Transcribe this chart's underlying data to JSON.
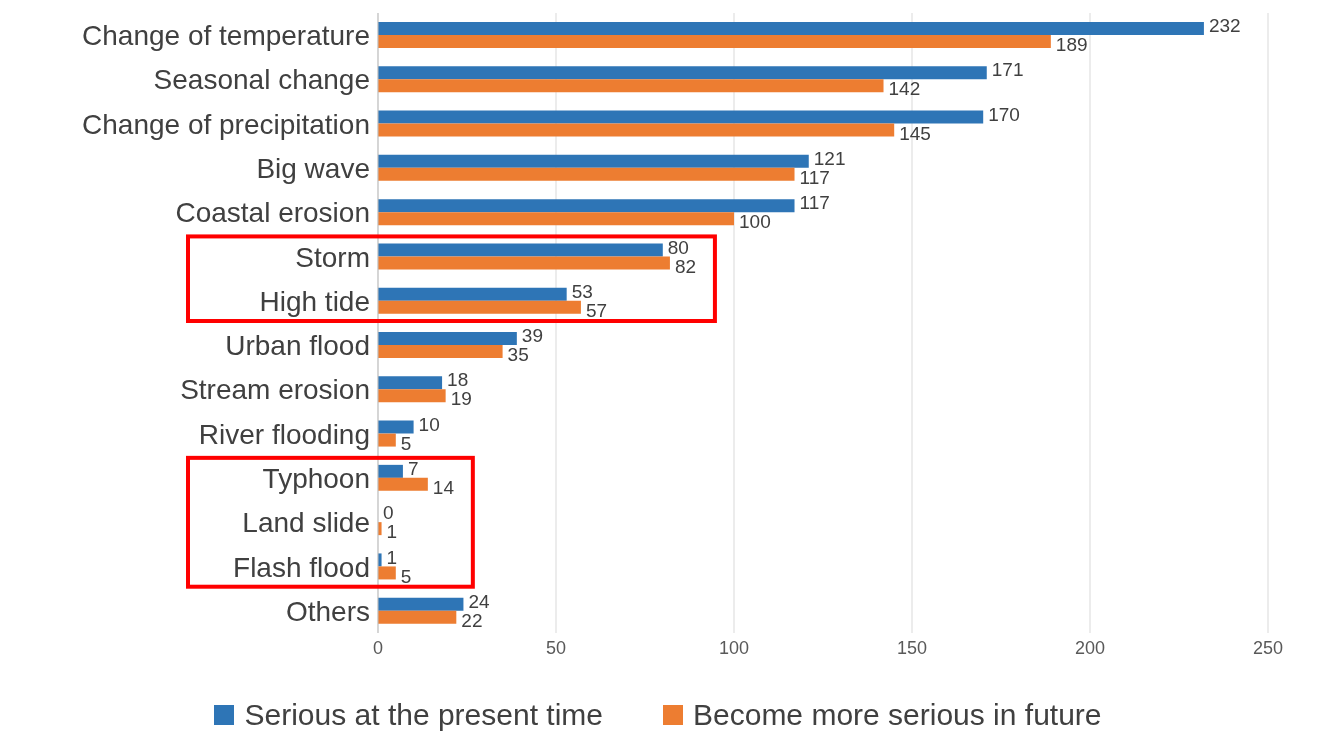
{
  "chart_data": {
    "type": "bar",
    "orientation": "horizontal",
    "categories": [
      "Change of temperature",
      "Seasonal change",
      "Change of precipitation",
      "Big wave",
      "Coastal erosion",
      "Storm",
      "High tide",
      "Urban flood",
      "Stream erosion",
      "River flooding",
      "Typhoon",
      "Land slide",
      "Flash flood",
      "Others"
    ],
    "series": [
      {
        "name": "Serious at the present time",
        "color": "#2e75b6",
        "values": [
          232,
          171,
          170,
          121,
          117,
          80,
          53,
          39,
          18,
          10,
          7,
          0,
          1,
          24
        ]
      },
      {
        "name": "Become more serious in future",
        "color": "#ed7d31",
        "values": [
          189,
          142,
          145,
          117,
          100,
          82,
          57,
          35,
          19,
          5,
          14,
          1,
          5,
          22
        ]
      }
    ],
    "xlim": [
      0,
      250
    ],
    "xticks": [
      0,
      50,
      100,
      150,
      200,
      250
    ],
    "grid": "x",
    "legend": "bottom",
    "data_labels": true
  }
}
